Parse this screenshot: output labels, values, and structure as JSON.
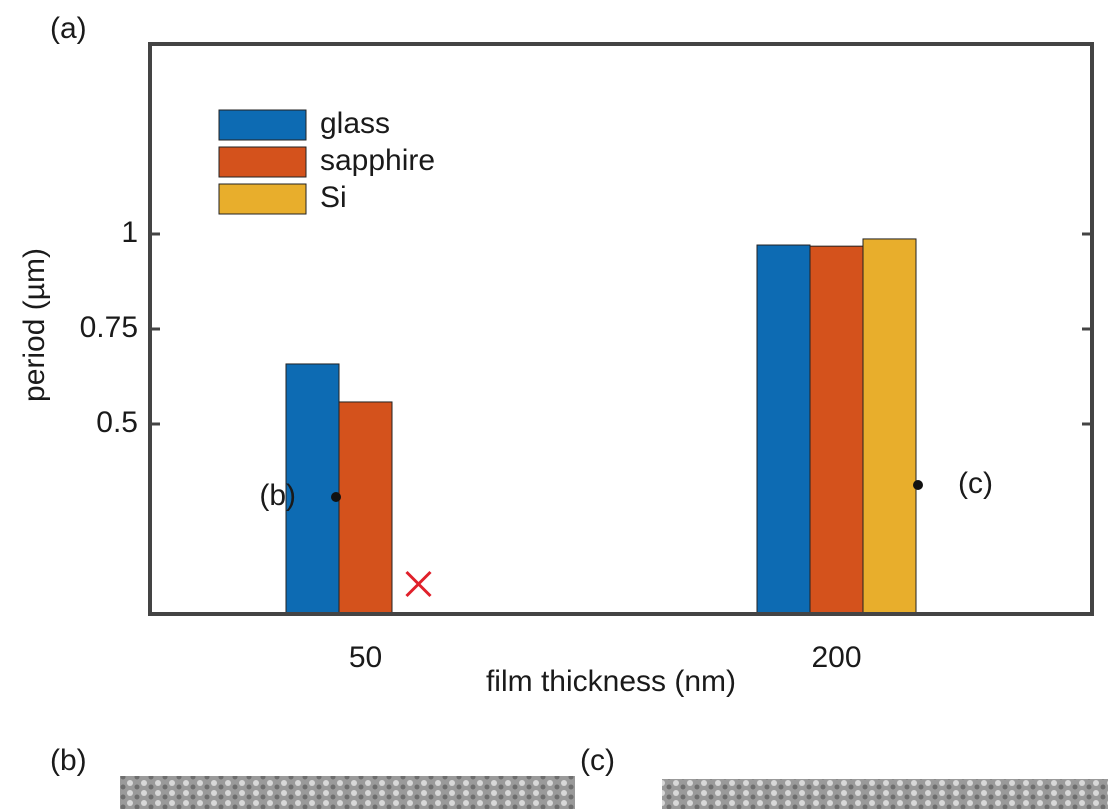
{
  "chart_data": {
    "type": "bar",
    "ylabel": "period (µm)",
    "xlabel": "film thickness (nm)",
    "categories": [
      "50",
      "200"
    ],
    "series": [
      {
        "name": "glass",
        "color": "#0d6bb3",
        "values": [
          0.658,
          0.971
        ]
      },
      {
        "name": "sapphire",
        "color": "#d4521c",
        "values": [
          0.558,
          0.968
        ]
      },
      {
        "name": "Si",
        "color": "#e8ae2c",
        "values": [
          null,
          0.987
        ]
      }
    ],
    "ylim": [
      0,
      1.5
    ],
    "yticks": [
      0.5,
      0.75,
      1
    ],
    "legend": "upper-left",
    "annotations": [
      {
        "text": "(b)"
      },
      {
        "text": "(c)"
      }
    ]
  },
  "panels": {
    "a": "(a)",
    "b": "(b)",
    "c": "(c)"
  }
}
